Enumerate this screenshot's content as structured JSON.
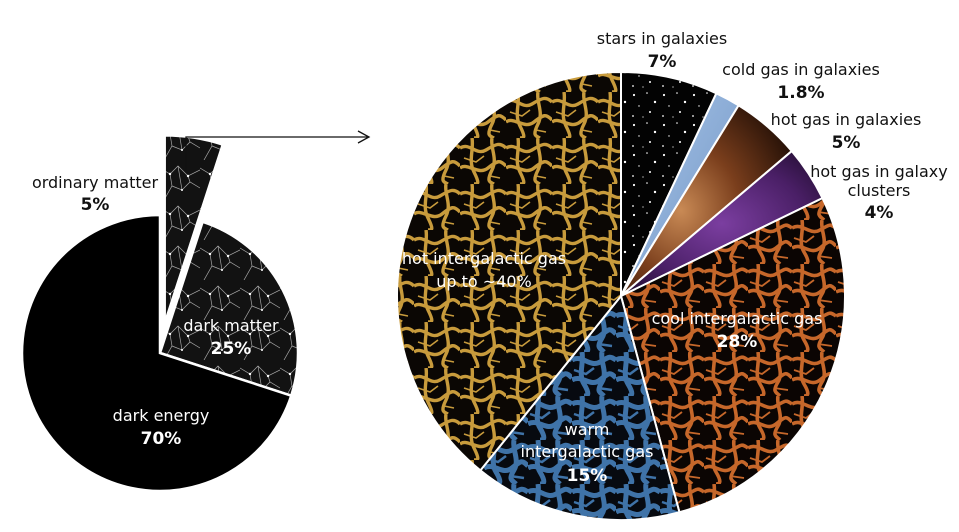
{
  "chart_data": [
    {
      "type": "pie",
      "slices": [
        {
          "name": "ordinary matter",
          "value": 5,
          "label": "5%",
          "color": "#1a1a1a",
          "texture": "cosmic-web-white",
          "exploded": true
        },
        {
          "name": "dark matter",
          "value": 25,
          "label": "25%",
          "color": "#141414",
          "texture": "cosmic-web-white"
        },
        {
          "name": "dark energy",
          "value": 70,
          "label": "70%",
          "color": "#000000"
        }
      ]
    },
    {
      "type": "pie",
      "breakdown_of": "ordinary matter",
      "slices": [
        {
          "name": "stars in galaxies",
          "value": 7,
          "label": "7%",
          "color": "#050505",
          "texture": "stars"
        },
        {
          "name": "cold gas in galaxies",
          "value": 1.8,
          "label": "1.8%",
          "color": "#8fb0d8"
        },
        {
          "name": "hot gas in galaxies",
          "value": 5,
          "label": "5%",
          "color": "#8a4a22"
        },
        {
          "name": "hot gas in galaxy clusters",
          "value": 4,
          "label": "4%",
          "color": "#5a2a78"
        },
        {
          "name": "cool intergalactic gas",
          "value": 28,
          "label": "28%",
          "color": "#c6672a",
          "texture": "filaments"
        },
        {
          "name": "warm intergalactic gas",
          "value": 15,
          "label": "15%",
          "color": "#3f73a8",
          "texture": "filaments"
        },
        {
          "name": "hot intergalactic gas",
          "value": 39.2,
          "label": "up to ~40%",
          "color": "#c89b3c",
          "texture": "filaments"
        }
      ]
    }
  ],
  "labels": {
    "ordinary_matter": {
      "name": "ordinary matter",
      "pct": "5%"
    },
    "dark_matter": {
      "name": "dark matter",
      "pct": "25%"
    },
    "dark_energy": {
      "name": "dark energy",
      "pct": "70%"
    },
    "stars": {
      "name": "stars in galaxies",
      "pct": "7%"
    },
    "cold_gas": {
      "name": "cold gas in galaxies",
      "pct": "1.8%"
    },
    "hot_gas_galaxies": {
      "name": "hot gas in galaxies",
      "pct": "5%"
    },
    "hot_gas_clusters": {
      "line1": "hot gas in galaxy",
      "line2": "clusters",
      "pct": "4%"
    },
    "cool_igm": {
      "name": "cool intergalactic gas",
      "pct": "28%"
    },
    "warm_igm": {
      "line1": "warm",
      "line2": "intergalactic gas",
      "pct": "15%"
    },
    "hot_igm": {
      "line1": "hot intergalactic gas",
      "line2": "up to ~40%"
    }
  }
}
